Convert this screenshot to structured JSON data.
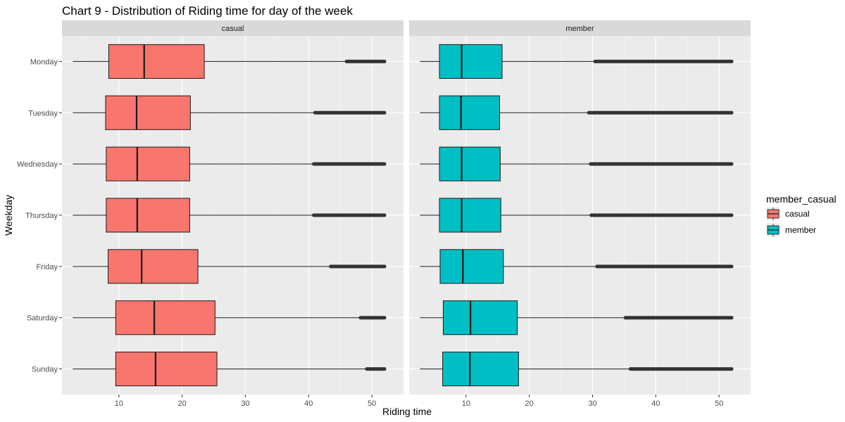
{
  "chart_data": {
    "type": "boxplot",
    "title": "Chart 9 - Distribution of Riding time for day of the week",
    "xlabel": "Riding time",
    "ylabel": "Weekday",
    "xlim": [
      1,
      55
    ],
    "xticks": [
      10,
      20,
      30,
      40,
      50
    ],
    "grid": true,
    "categories": [
      "Monday",
      "Tuesday",
      "Wednesday",
      "Thursday",
      "Friday",
      "Saturday",
      "Sunday"
    ],
    "legend": {
      "title": "member_casual",
      "position": "right",
      "entries": [
        {
          "label": "casual",
          "color": "#F8766D"
        },
        {
          "label": "member",
          "color": "#00BFC4"
        }
      ]
    },
    "facets": [
      {
        "name": "casual",
        "color": "#F8766D",
        "boxes": [
          {
            "day": "Monday",
            "whisker_low": 2.7,
            "q1": 8.4,
            "median": 14.0,
            "q3": 23.5,
            "whisker_high": 46.0,
            "outliers_to": 52.0
          },
          {
            "day": "Tuesday",
            "whisker_low": 2.7,
            "q1": 7.9,
            "median": 12.8,
            "q3": 21.3,
            "whisker_high": 41.0,
            "outliers_to": 52.0
          },
          {
            "day": "Wednesday",
            "whisker_low": 2.7,
            "q1": 8.0,
            "median": 12.9,
            "q3": 21.2,
            "whisker_high": 40.8,
            "outliers_to": 52.0
          },
          {
            "day": "Thursday",
            "whisker_low": 2.7,
            "q1": 8.0,
            "median": 12.9,
            "q3": 21.2,
            "whisker_high": 40.8,
            "outliers_to": 52.0
          },
          {
            "day": "Friday",
            "whisker_low": 2.7,
            "q1": 8.3,
            "median": 13.6,
            "q3": 22.5,
            "whisker_high": 43.5,
            "outliers_to": 52.0
          },
          {
            "day": "Saturday",
            "whisker_low": 2.7,
            "q1": 9.5,
            "median": 15.6,
            "q3": 25.2,
            "whisker_high": 48.2,
            "outliers_to": 52.0
          },
          {
            "day": "Sunday",
            "whisker_low": 2.7,
            "q1": 9.5,
            "median": 15.8,
            "q3": 25.5,
            "whisker_high": 49.2,
            "outliers_to": 52.0
          }
        ]
      },
      {
        "name": "member",
        "color": "#00BFC4",
        "boxes": [
          {
            "day": "Monday",
            "whisker_low": 2.7,
            "q1": 5.8,
            "median": 9.3,
            "q3": 15.7,
            "whisker_high": 30.4,
            "outliers_to": 52.0
          },
          {
            "day": "Tuesday",
            "whisker_low": 2.7,
            "q1": 5.8,
            "median": 9.2,
            "q3": 15.3,
            "whisker_high": 29.4,
            "outliers_to": 52.0
          },
          {
            "day": "Wednesday",
            "whisker_low": 2.7,
            "q1": 5.8,
            "median": 9.3,
            "q3": 15.4,
            "whisker_high": 29.7,
            "outliers_to": 52.0
          },
          {
            "day": "Thursday",
            "whisker_low": 2.7,
            "q1": 5.8,
            "median": 9.3,
            "q3": 15.5,
            "whisker_high": 29.8,
            "outliers_to": 52.0
          },
          {
            "day": "Friday",
            "whisker_low": 2.7,
            "q1": 5.9,
            "median": 9.5,
            "q3": 15.9,
            "whisker_high": 30.7,
            "outliers_to": 52.0
          },
          {
            "day": "Saturday",
            "whisker_low": 2.7,
            "q1": 6.4,
            "median": 10.7,
            "q3": 18.1,
            "whisker_high": 35.2,
            "outliers_to": 52.0
          },
          {
            "day": "Sunday",
            "whisker_low": 2.7,
            "q1": 6.3,
            "median": 10.6,
            "q3": 18.3,
            "whisker_high": 36.0,
            "outliers_to": 52.0
          }
        ]
      }
    ]
  }
}
